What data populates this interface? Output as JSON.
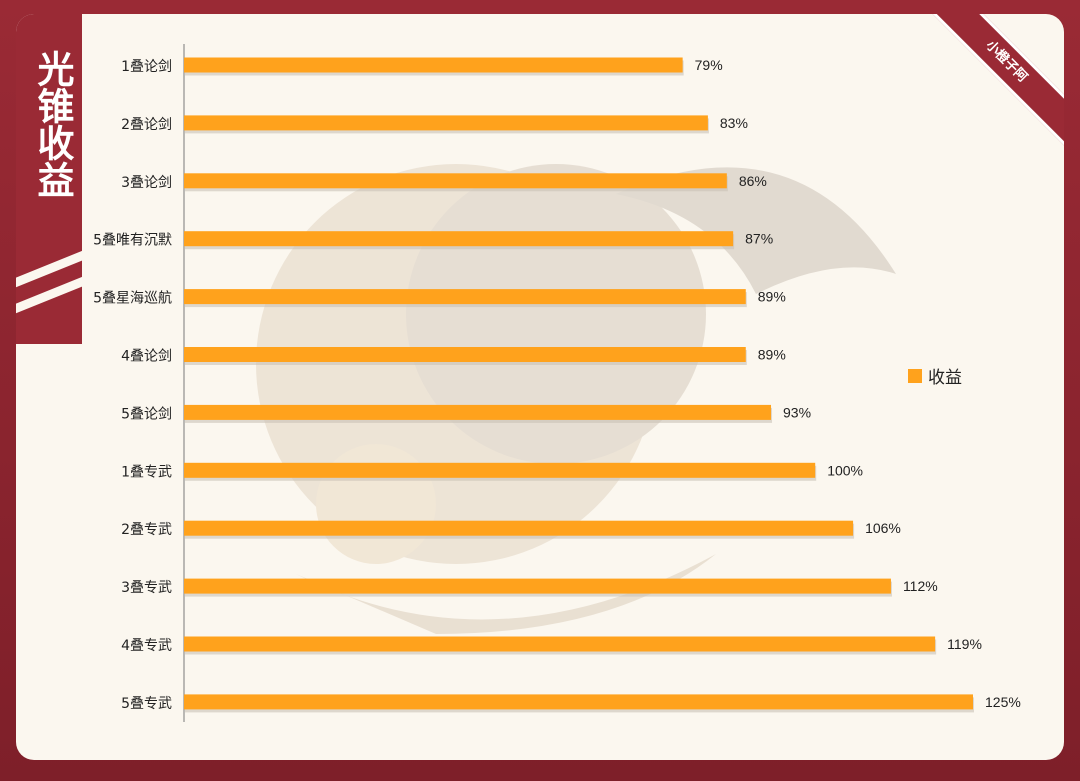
{
  "title": "光锥收益",
  "watermark": "小橙子阿",
  "legend_label": "收益",
  "colors": {
    "bar": "#ffa21c",
    "bar_shadow": "#c9c2b6",
    "frame": "#9a2a35",
    "panel": "#fbf7ef"
  },
  "chart_data": {
    "type": "bar",
    "orientation": "horizontal",
    "categories": [
      "1叠论剑",
      "2叠论剑",
      "3叠论剑",
      "5叠唯有沉默",
      "5叠星海巡航",
      "4叠论剑",
      "5叠论剑",
      "1叠专武",
      "2叠专武",
      "3叠专武",
      "4叠专武",
      "5叠专武"
    ],
    "series": [
      {
        "name": "收益",
        "values": [
          79,
          83,
          86,
          87,
          89,
          89,
          93,
          100,
          106,
          112,
          119,
          125
        ]
      }
    ],
    "data_labels": [
      "79%",
      "83%",
      "86%",
      "87%",
      "89%",
      "89%",
      "93%",
      "100%",
      "106%",
      "112%",
      "119%",
      "125%"
    ],
    "xlim": [
      0,
      125
    ],
    "grid": false,
    "legend": "right"
  }
}
